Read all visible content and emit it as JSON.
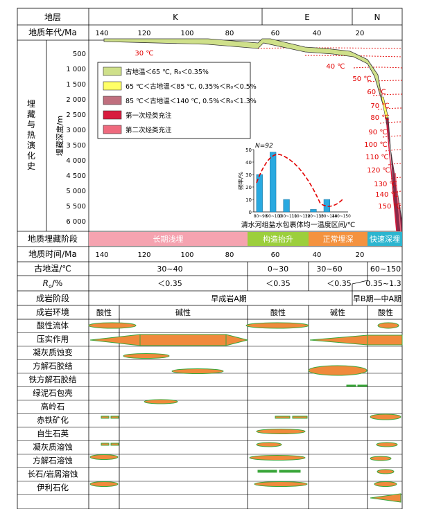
{
  "header": {
    "stratum_label": "地层",
    "periods": [
      "K",
      "E",
      "N"
    ],
    "age_label": "地质年代/Ma",
    "age_ticks": [
      "140",
      "120",
      "100",
      "80",
      "60",
      "40",
      "20"
    ]
  },
  "burial_history": {
    "side_label": "埋藏与热演化史",
    "depth_axis_label": "埋藏深度/m",
    "depth_ticks": [
      "500",
      "1 000",
      "1 500",
      "2 000",
      "2 500",
      "3 000",
      "3 500",
      "4 000",
      "4 500",
      "5 000",
      "5 500",
      "6 000"
    ],
    "isotherms": [
      "30 ℃",
      "40 ℃",
      "50 ℃",
      "60 ℃",
      "70 ℃",
      "80 ℃",
      "90 ℃",
      "100 ℃",
      "110 ℃",
      "120 ℃",
      "130 ℃",
      "140 ℃",
      "150 ℃"
    ],
    "legend": [
      {
        "text": "古地温＜65 ℃, R₀＜0.35%",
        "color": "#cfe08a"
      },
      {
        "text": "65 ℃＜古地温＜85 ℃, 0.35%＜R₀＜0.5%",
        "color": "#ffff66"
      },
      {
        "text": "85 ℃＜古地温＜140 ℃, 0.5%＜R₀＜1.3%",
        "color": "#c06f7e"
      },
      {
        "text": "第一次烃类充注",
        "color": "#d81b3e"
      },
      {
        "text": "第二次烃类充注",
        "color": "#ef6a7e"
      }
    ],
    "colors": {
      "path": "#cfe08a",
      "isotherm": "#e30000",
      "hist_bar": "#29a9e0",
      "hist_curve": "#e30000"
    }
  },
  "histogram": {
    "n_label": "N=92",
    "y_label": "频率/%",
    "y_ticks": [
      "0",
      "10",
      "20",
      "30",
      "40",
      "50"
    ],
    "x_label": "清水河组盐水包裹体均一温度区间/℃",
    "categories": [
      "80~90",
      "90~100",
      "100~110",
      "110~120",
      "120~130",
      "130~140",
      "140~150"
    ],
    "values": [
      30,
      48,
      10,
      0,
      2,
      10,
      0
    ],
    "ylim": [
      0,
      50
    ]
  },
  "stages": {
    "label": "地质埋藏阶段",
    "items": [
      {
        "name": "长期浅埋",
        "color": "#f5a3b0"
      },
      {
        "name": "构造抬升",
        "color": "#9ccf3c"
      },
      {
        "name": "正常埋深",
        "color": "#f4923f"
      },
      {
        "name": "快速深埋",
        "color": "#2cb5cf"
      }
    ]
  },
  "geo_time": {
    "label": "地质时间/Ma",
    "ticks": [
      "140",
      "120",
      "100",
      "80",
      "60",
      "40",
      "20"
    ]
  },
  "paleotemp": {
    "label": "古地温/℃",
    "values": [
      "30~40",
      "0~30",
      "30~60",
      "60~150"
    ]
  },
  "ro": {
    "label_main": "R",
    "label_sub": "o",
    "label_unit": "/%",
    "values": [
      "＜0.35",
      "＜0.35",
      "＜0.35",
      "0.35~1.3"
    ]
  },
  "diagenesis_stage": {
    "label": "成岩阶段",
    "early_a": "早成岩A期",
    "late": "早B期—中A期"
  },
  "environment": {
    "label": "成岩环境",
    "items": [
      "酸性",
      "碱性",
      "酸性",
      "碱性",
      "酸性"
    ]
  },
  "processes": [
    {
      "name": "酸性流体"
    },
    {
      "name": "压实作用"
    },
    {
      "name": "凝灰质蚀变"
    },
    {
      "name": "方解石胶结"
    },
    {
      "name": "铁方解石胶结"
    },
    {
      "name": "绿泥石包壳"
    },
    {
      "name": "高岭石"
    },
    {
      "name": "赤铁矿化"
    },
    {
      "name": "自生石英"
    },
    {
      "name": "凝灰质溶蚀"
    },
    {
      "name": "方解石溶蚀"
    },
    {
      "name": "长石/岩屑溶蚀"
    },
    {
      "name": "伊利石化"
    }
  ],
  "bar_colors": {
    "fill": "#f08a3c",
    "stroke": "#3aa63a"
  }
}
